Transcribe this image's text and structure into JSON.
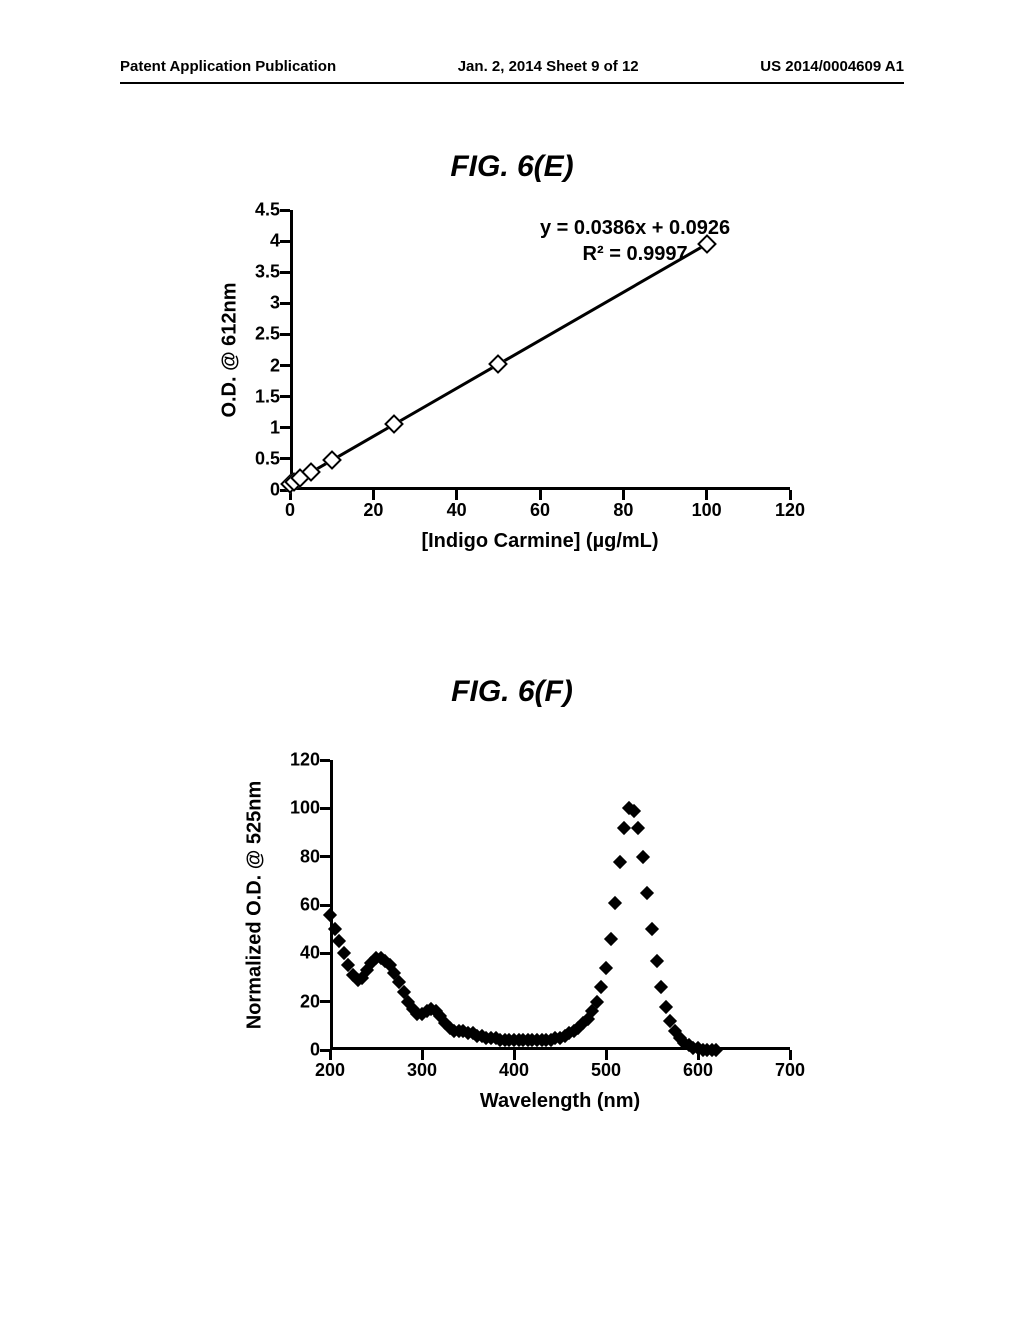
{
  "header": {
    "left": "Patent Application Publication",
    "center": "Jan. 2, 2014  Sheet 9 of 12",
    "right": "US 2014/0004609 A1"
  },
  "figE": {
    "title": "FIG. 6(E)",
    "type": "scatter-line",
    "xlabel": "[Indigo Carmine] (µg/mL)",
    "ylabel": "O.D. @ 612nm",
    "equation_line1": "y = 0.0386x + 0.0926",
    "equation_line2": "R² = 0.9997",
    "xlim": [
      0,
      120
    ],
    "ylim": [
      0,
      4.5
    ],
    "xticks": [
      0,
      20,
      40,
      60,
      80,
      100,
      120
    ],
    "yticks": [
      0,
      0.5,
      1,
      1.5,
      2,
      2.5,
      3,
      3.5,
      4,
      4.5
    ],
    "x": [
      0,
      1,
      2.5,
      5,
      10,
      25,
      50,
      100
    ],
    "y": [
      0.09,
      0.13,
      0.19,
      0.29,
      0.48,
      1.06,
      2.02,
      3.95
    ],
    "line_color": "#000000",
    "marker_stroke": "#000000",
    "marker_fill": "#ffffff",
    "line_width": 3,
    "background_color": "#ffffff",
    "label_fontsize": 20,
    "tick_fontsize": 18
  },
  "figF": {
    "title": "FIG. 6(F)",
    "type": "scatter",
    "xlabel": "Wavelength (nm)",
    "ylabel": "Normalized O.D. @ 525nm",
    "xlim": [
      200,
      700
    ],
    "ylim": [
      0,
      120
    ],
    "xticks": [
      200,
      300,
      400,
      500,
      600,
      700
    ],
    "yticks": [
      0,
      20,
      40,
      60,
      80,
      100,
      120
    ],
    "x": [
      200,
      205,
      210,
      215,
      220,
      225,
      230,
      235,
      240,
      245,
      250,
      255,
      260,
      265,
      270,
      275,
      280,
      285,
      290,
      295,
      300,
      305,
      310,
      315,
      320,
      325,
      330,
      335,
      340,
      345,
      350,
      355,
      360,
      365,
      370,
      375,
      380,
      385,
      390,
      395,
      400,
      405,
      410,
      415,
      420,
      425,
      430,
      435,
      440,
      445,
      450,
      455,
      460,
      465,
      470,
      475,
      480,
      485,
      490,
      495,
      500,
      505,
      510,
      515,
      520,
      525,
      530,
      535,
      540,
      545,
      550,
      555,
      560,
      565,
      570,
      575,
      580,
      585,
      590,
      595,
      600,
      605,
      610,
      615,
      620
    ],
    "y": [
      56,
      50,
      45,
      40,
      35,
      31,
      29,
      30,
      33,
      36,
      38,
      38,
      37,
      35,
      32,
      28,
      24,
      20,
      17,
      15,
      15,
      16,
      17,
      16,
      14,
      11,
      9,
      8,
      8,
      8,
      7,
      7,
      6,
      6,
      5,
      5,
      5,
      4,
      4,
      4,
      4,
      4,
      4,
      4,
      4,
      4,
      4,
      4,
      4,
      5,
      5,
      6,
      7,
      8,
      9,
      11,
      13,
      16,
      20,
      26,
      34,
      46,
      61,
      78,
      92,
      100,
      99,
      92,
      80,
      65,
      50,
      37,
      26,
      18,
      12,
      8,
      5,
      3,
      2,
      1,
      1,
      0,
      0,
      0,
      0
    ],
    "marker_color": "#000000",
    "background_color": "#ffffff",
    "label_fontsize": 20,
    "tick_fontsize": 18
  }
}
